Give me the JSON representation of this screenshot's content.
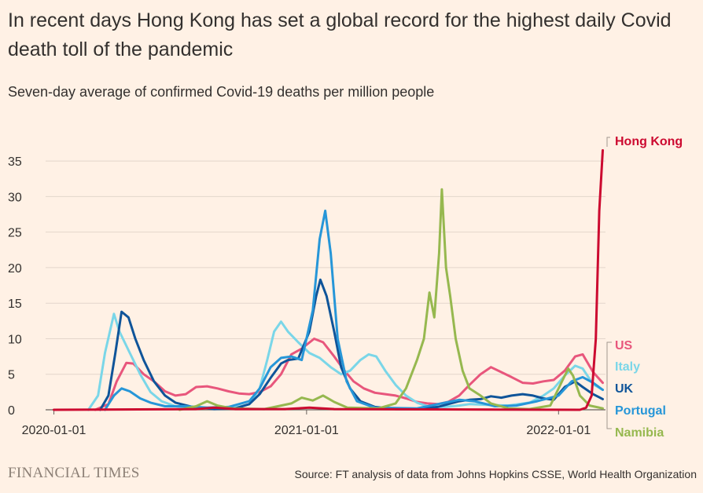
{
  "headline": "In recent days Hong Kong has set a global record for the highest daily Covid death toll of the pandemic",
  "subtitle": "Seven-day average of confirmed Covid-19 deaths per million people",
  "footer": {
    "logo": "FINANCIAL TIMES",
    "source": "Source: FT analysis of data from Johns Hopkins CSSE, World Health Organization"
  },
  "chart_data": {
    "type": "line",
    "xlabel": "",
    "ylabel": "",
    "x_ticks": [
      "2020-01-01",
      "2021-01-01",
      "2022-01-01"
    ],
    "y_ticks": [
      0,
      5,
      10,
      15,
      20,
      25,
      30,
      35
    ],
    "xlim": [
      "2019-12-20",
      "2022-03-10"
    ],
    "ylim": [
      0,
      37
    ],
    "grid": true,
    "legend": "direct labels at right end of lines",
    "series": [
      {
        "name": "US",
        "color": "#e8567c",
        "points": [
          [
            "2020-03-01",
            0
          ],
          [
            "2020-03-20",
            0.8
          ],
          [
            "2020-04-01",
            4
          ],
          [
            "2020-04-15",
            6.6
          ],
          [
            "2020-04-25",
            6.5
          ],
          [
            "2020-05-10",
            5
          ],
          [
            "2020-05-25",
            4
          ],
          [
            "2020-06-10",
            2.6
          ],
          [
            "2020-06-25",
            2
          ],
          [
            "2020-07-10",
            2.2
          ],
          [
            "2020-07-25",
            3.2
          ],
          [
            "2020-08-10",
            3.3
          ],
          [
            "2020-08-25",
            3
          ],
          [
            "2020-09-10",
            2.6
          ],
          [
            "2020-09-25",
            2.3
          ],
          [
            "2020-10-10",
            2.2
          ],
          [
            "2020-10-25",
            2.5
          ],
          [
            "2020-11-10",
            3.3
          ],
          [
            "2020-11-25",
            5
          ],
          [
            "2020-12-10",
            7.8
          ],
          [
            "2020-12-25",
            8.6
          ],
          [
            "2021-01-12",
            10
          ],
          [
            "2021-01-25",
            9.5
          ],
          [
            "2021-02-10",
            7.5
          ],
          [
            "2021-02-25",
            5.5
          ],
          [
            "2021-03-10",
            4
          ],
          [
            "2021-03-25",
            3
          ],
          [
            "2021-04-10",
            2.4
          ],
          [
            "2021-04-25",
            2.2
          ],
          [
            "2021-05-10",
            2
          ],
          [
            "2021-05-25",
            1.6
          ],
          [
            "2021-06-10",
            1.1
          ],
          [
            "2021-06-25",
            0.9
          ],
          [
            "2021-07-10",
            0.8
          ],
          [
            "2021-07-25",
            1.1
          ],
          [
            "2021-08-10",
            2
          ],
          [
            "2021-08-25",
            3.5
          ],
          [
            "2021-09-10",
            5
          ],
          [
            "2021-09-25",
            6
          ],
          [
            "2021-10-10",
            5.3
          ],
          [
            "2021-10-25",
            4.6
          ],
          [
            "2021-11-10",
            3.8
          ],
          [
            "2021-11-25",
            3.7
          ],
          [
            "2021-12-10",
            4
          ],
          [
            "2021-12-25",
            4.2
          ],
          [
            "2022-01-10",
            5.5
          ],
          [
            "2022-01-25",
            7.5
          ],
          [
            "2022-02-05",
            7.8
          ],
          [
            "2022-02-20",
            5.3
          ],
          [
            "2022-03-06",
            3.8
          ]
        ]
      },
      {
        "name": "Italy",
        "color": "#7ad6e8",
        "points": [
          [
            "2020-02-20",
            0
          ],
          [
            "2020-03-05",
            2
          ],
          [
            "2020-03-15",
            8
          ],
          [
            "2020-03-28",
            13.5
          ],
          [
            "2020-04-05",
            11
          ],
          [
            "2020-04-20",
            8
          ],
          [
            "2020-05-05",
            5
          ],
          [
            "2020-05-20",
            2.5
          ],
          [
            "2020-06-05",
            1.2
          ],
          [
            "2020-06-25",
            0.5
          ],
          [
            "2020-07-20",
            0.2
          ],
          [
            "2020-08-20",
            0.2
          ],
          [
            "2020-09-20",
            0.3
          ],
          [
            "2020-10-10",
            0.8
          ],
          [
            "2020-10-25",
            3
          ],
          [
            "2020-11-05",
            7
          ],
          [
            "2020-11-15",
            11
          ],
          [
            "2020-11-25",
            12.4
          ],
          [
            "2020-12-05",
            11
          ],
          [
            "2020-12-20",
            9.5
          ],
          [
            "2021-01-05",
            8
          ],
          [
            "2021-01-20",
            7.3
          ],
          [
            "2021-02-05",
            6
          ],
          [
            "2021-02-20",
            5
          ],
          [
            "2021-03-05",
            5.5
          ],
          [
            "2021-03-20",
            7
          ],
          [
            "2021-04-01",
            7.8
          ],
          [
            "2021-04-12",
            7.5
          ],
          [
            "2021-04-25",
            5.5
          ],
          [
            "2021-05-10",
            3.5
          ],
          [
            "2021-05-25",
            2
          ],
          [
            "2021-06-10",
            1
          ],
          [
            "2021-06-25",
            0.5
          ],
          [
            "2021-07-20",
            0.4
          ],
          [
            "2021-08-10",
            0.6
          ],
          [
            "2021-08-25",
            0.8
          ],
          [
            "2021-09-20",
            0.7
          ],
          [
            "2021-10-20",
            0.6
          ],
          [
            "2021-11-20",
            1
          ],
          [
            "2021-12-10",
            2
          ],
          [
            "2021-12-25",
            3
          ],
          [
            "2022-01-10",
            4.8
          ],
          [
            "2022-01-25",
            6.2
          ],
          [
            "2022-02-05",
            5.8
          ],
          [
            "2022-02-20",
            3.6
          ],
          [
            "2022-03-06",
            2.8
          ]
        ]
      },
      {
        "name": "UK",
        "color": "#0f5499",
        "points": [
          [
            "2020-03-08",
            0
          ],
          [
            "2020-03-20",
            2
          ],
          [
            "2020-03-30",
            8
          ],
          [
            "2020-04-08",
            13.8
          ],
          [
            "2020-04-18",
            13
          ],
          [
            "2020-04-28",
            10
          ],
          [
            "2020-05-10",
            7
          ],
          [
            "2020-05-25",
            4
          ],
          [
            "2020-06-10",
            2
          ],
          [
            "2020-06-25",
            1
          ],
          [
            "2020-07-20",
            0.4
          ],
          [
            "2020-08-20",
            0.1
          ],
          [
            "2020-09-20",
            0.2
          ],
          [
            "2020-10-10",
            0.8
          ],
          [
            "2020-10-25",
            2.2
          ],
          [
            "2020-11-10",
            4.5
          ],
          [
            "2020-11-25",
            6.5
          ],
          [
            "2020-12-05",
            7
          ],
          [
            "2020-12-20",
            7.2
          ],
          [
            "2021-01-05",
            11
          ],
          [
            "2021-01-15",
            16
          ],
          [
            "2021-01-21",
            18.3
          ],
          [
            "2021-01-30",
            16
          ],
          [
            "2021-02-10",
            11
          ],
          [
            "2021-02-20",
            6
          ],
          [
            "2021-03-05",
            3
          ],
          [
            "2021-03-20",
            1.2
          ],
          [
            "2021-04-10",
            0.4
          ],
          [
            "2021-05-10",
            0.1
          ],
          [
            "2021-06-10",
            0.1
          ],
          [
            "2021-07-10",
            0.4
          ],
          [
            "2021-07-25",
            0.8
          ],
          [
            "2021-08-10",
            1.2
          ],
          [
            "2021-08-25",
            1.4
          ],
          [
            "2021-09-10",
            1.5
          ],
          [
            "2021-09-25",
            1.9
          ],
          [
            "2021-10-10",
            1.7
          ],
          [
            "2021-10-25",
            2
          ],
          [
            "2021-11-10",
            2.2
          ],
          [
            "2021-11-25",
            2
          ],
          [
            "2021-12-10",
            1.6
          ],
          [
            "2021-12-25",
            1.4
          ],
          [
            "2022-01-10",
            3.2
          ],
          [
            "2022-01-25",
            4
          ],
          [
            "2022-02-05",
            3.2
          ],
          [
            "2022-02-20",
            2.2
          ],
          [
            "2022-03-06",
            1.5
          ]
        ]
      },
      {
        "name": "Portugal",
        "color": "#2696d8",
        "points": [
          [
            "2020-03-15",
            0
          ],
          [
            "2020-03-28",
            2
          ],
          [
            "2020-04-08",
            3
          ],
          [
            "2020-04-20",
            2.6
          ],
          [
            "2020-05-05",
            1.6
          ],
          [
            "2020-05-20",
            1
          ],
          [
            "2020-06-10",
            0.5
          ],
          [
            "2020-07-10",
            0.5
          ],
          [
            "2020-08-10",
            0.3
          ],
          [
            "2020-09-10",
            0.4
          ],
          [
            "2020-10-10",
            1.2
          ],
          [
            "2020-10-25",
            3
          ],
          [
            "2020-11-10",
            6
          ],
          [
            "2020-11-25",
            7.3
          ],
          [
            "2020-12-10",
            7.5
          ],
          [
            "2020-12-25",
            7
          ],
          [
            "2021-01-10",
            14
          ],
          [
            "2021-01-20",
            24
          ],
          [
            "2021-01-28",
            28
          ],
          [
            "2021-02-05",
            22
          ],
          [
            "2021-02-15",
            10
          ],
          [
            "2021-02-28",
            4
          ],
          [
            "2021-03-15",
            1.2
          ],
          [
            "2021-04-10",
            0.3
          ],
          [
            "2021-06-10",
            0.2
          ],
          [
            "2021-07-10",
            0.8
          ],
          [
            "2021-08-10",
            1.4
          ],
          [
            "2021-09-01",
            1.2
          ],
          [
            "2021-10-01",
            0.5
          ],
          [
            "2021-11-01",
            0.6
          ],
          [
            "2021-12-01",
            1.2
          ],
          [
            "2022-01-01",
            2
          ],
          [
            "2022-01-20",
            4
          ],
          [
            "2022-02-05",
            4.6
          ],
          [
            "2022-02-20",
            3.8
          ],
          [
            "2022-03-06",
            2.8
          ]
        ]
      },
      {
        "name": "Namibia",
        "color": "#96b84f",
        "points": [
          [
            "2020-07-01",
            0
          ],
          [
            "2020-07-25",
            0.5
          ],
          [
            "2020-08-10",
            1.2
          ],
          [
            "2020-08-25",
            0.6
          ],
          [
            "2020-09-15",
            0.2
          ],
          [
            "2020-11-01",
            0.1
          ],
          [
            "2020-12-10",
            0.9
          ],
          [
            "2020-12-25",
            1.7
          ],
          [
            "2021-01-10",
            1.3
          ],
          [
            "2021-01-25",
            2
          ],
          [
            "2021-02-10",
            1.1
          ],
          [
            "2021-03-01",
            0.3
          ],
          [
            "2021-04-15",
            0.2
          ],
          [
            "2021-05-10",
            0.9
          ],
          [
            "2021-05-25",
            3
          ],
          [
            "2021-06-10",
            7
          ],
          [
            "2021-06-20",
            10
          ],
          [
            "2021-06-28",
            16.5
          ],
          [
            "2021-07-05",
            13
          ],
          [
            "2021-07-12",
            22
          ],
          [
            "2021-07-16",
            31
          ],
          [
            "2021-07-22",
            20
          ],
          [
            "2021-07-28",
            16
          ],
          [
            "2021-08-05",
            10
          ],
          [
            "2021-08-15",
            5.5
          ],
          [
            "2021-08-25",
            3
          ],
          [
            "2021-09-10",
            2
          ],
          [
            "2021-09-25",
            0.9
          ],
          [
            "2021-10-20",
            0.2
          ],
          [
            "2021-11-20",
            0.1
          ],
          [
            "2021-12-20",
            0.6
          ],
          [
            "2022-01-05",
            3.8
          ],
          [
            "2022-01-15",
            5.8
          ],
          [
            "2022-01-22",
            4.8
          ],
          [
            "2022-02-01",
            2
          ],
          [
            "2022-02-15",
            0.6
          ],
          [
            "2022-03-06",
            0.2
          ]
        ]
      },
      {
        "name": "Hong Kong",
        "color": "#cc0a30",
        "points": [
          [
            "2020-01-01",
            0
          ],
          [
            "2020-07-25",
            0.1
          ],
          [
            "2020-08-20",
            0.3
          ],
          [
            "2020-09-20",
            0.1
          ],
          [
            "2020-12-01",
            0.1
          ],
          [
            "2021-01-05",
            0.3
          ],
          [
            "2021-02-10",
            0.1
          ],
          [
            "2022-02-01",
            0
          ],
          [
            "2022-02-10",
            0.3
          ],
          [
            "2022-02-18",
            2
          ],
          [
            "2022-02-24",
            10
          ],
          [
            "2022-03-01",
            28
          ],
          [
            "2022-03-06",
            36.5
          ]
        ]
      }
    ]
  }
}
